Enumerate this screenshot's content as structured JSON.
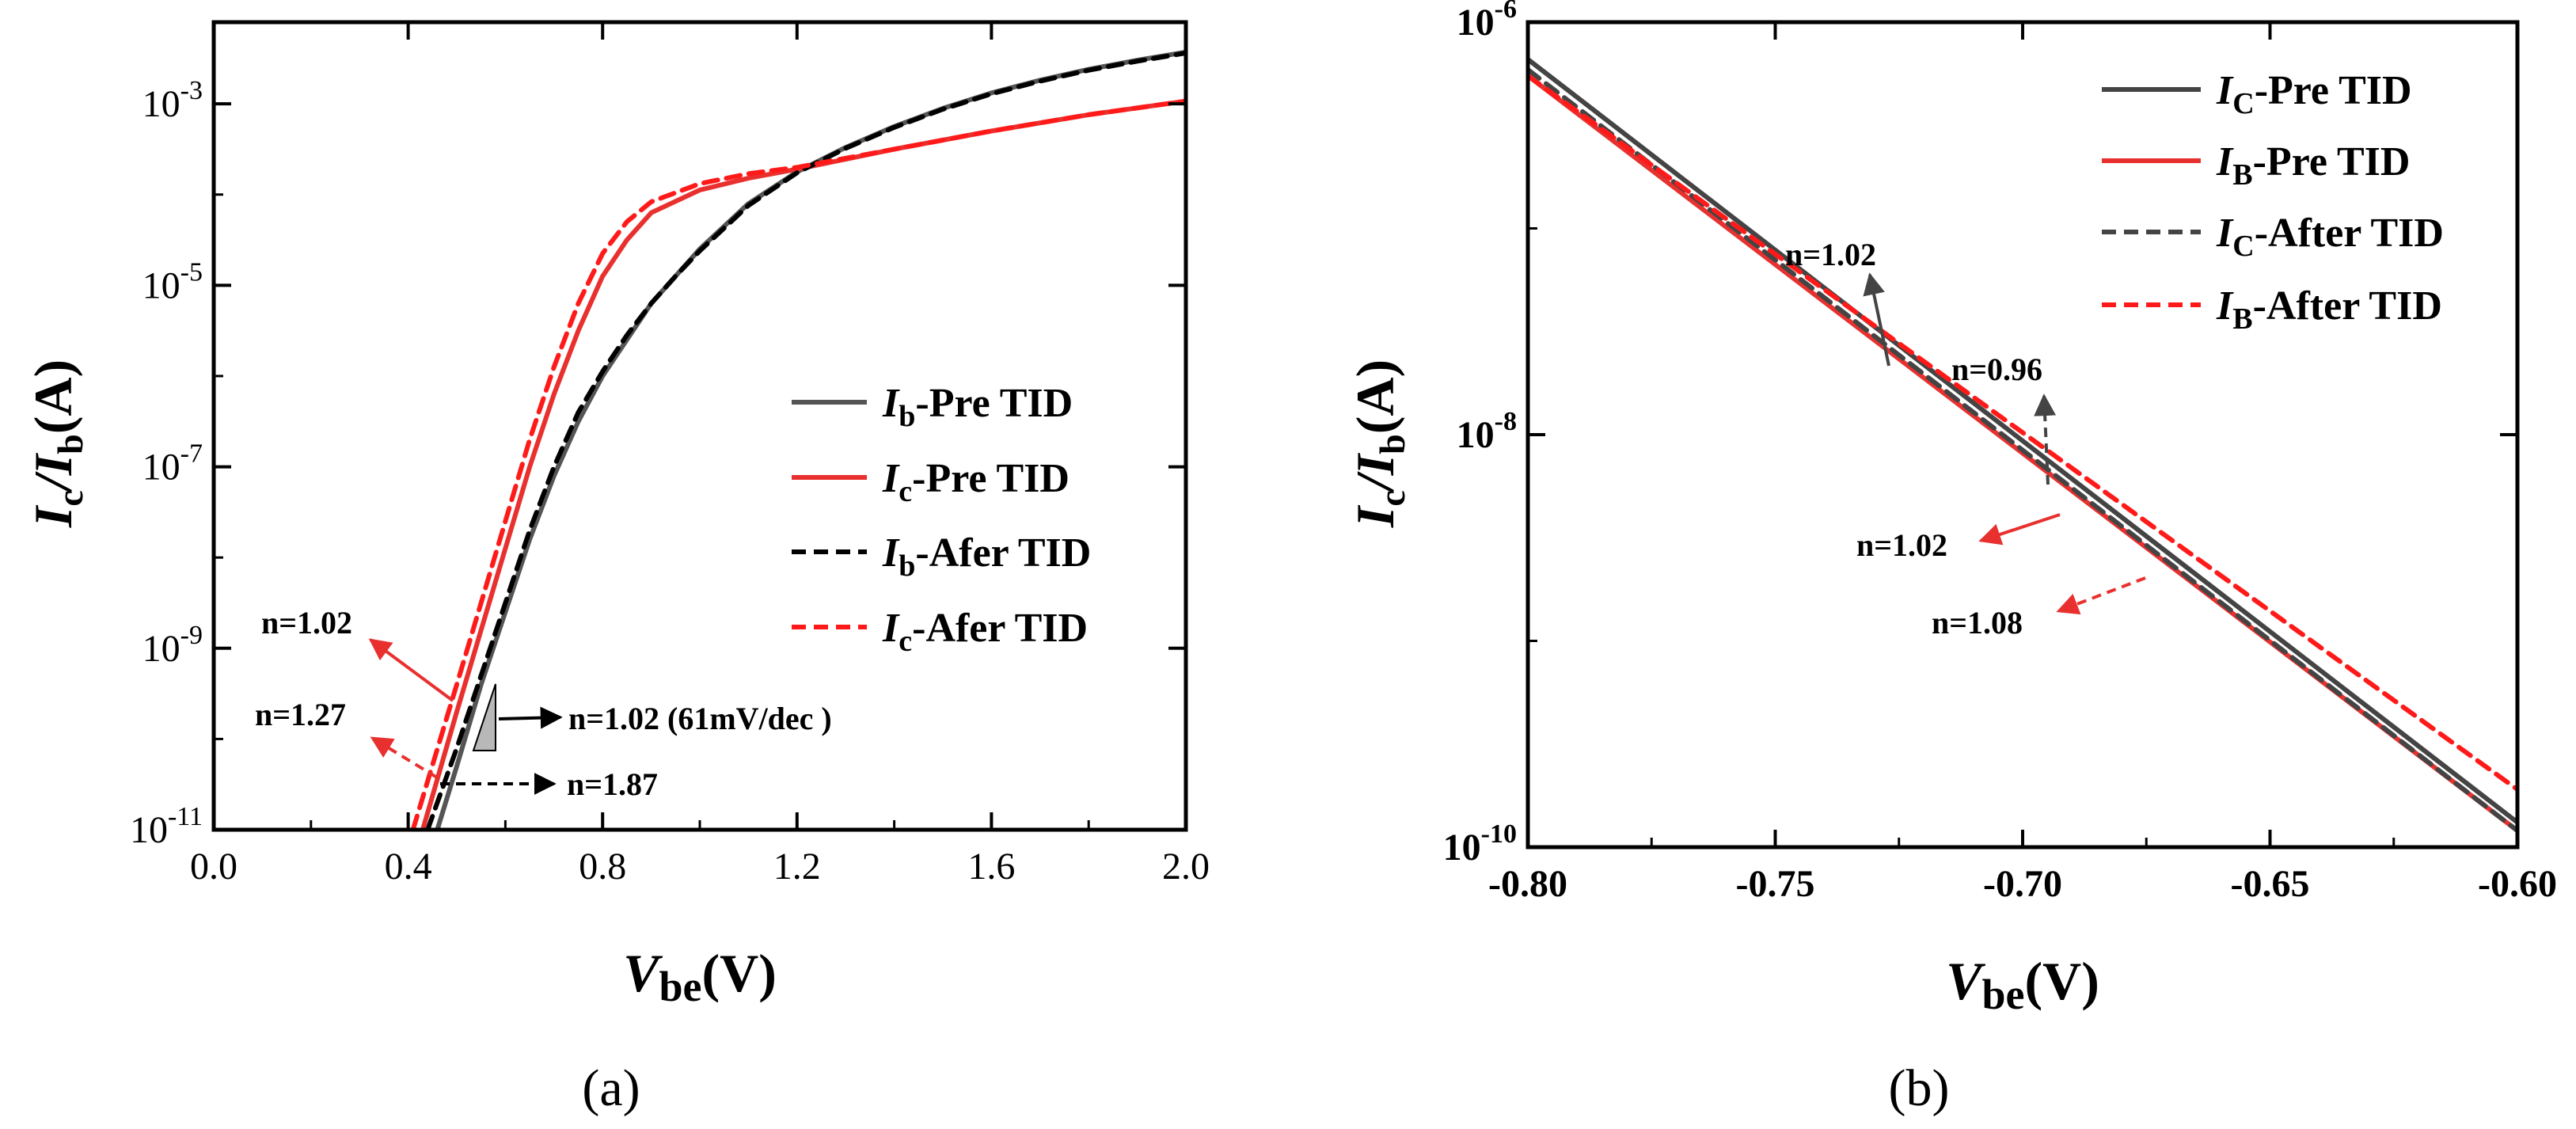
{
  "chart_data": [
    {
      "id": "a",
      "type": "line",
      "caption": "(a)",
      "xlabel": {
        "main": "V",
        "sub": "be",
        "unit": "(V)"
      },
      "ylabel": {
        "p1": "I",
        "s1": "c",
        "p2": "/I",
        "s2": "b",
        "unit": "(A)"
      },
      "xlim": [
        0,
        2
      ],
      "ylim_log10": [
        -11,
        -2.1
      ],
      "y_scale": "log",
      "xticks": [
        0,
        0.4,
        0.8,
        1.2,
        1.6,
        2.0
      ],
      "xtick_labels": [
        "0.0",
        "0.4",
        "0.8",
        "1.2",
        "1.6",
        "2.0"
      ],
      "yticks_log10": [
        -11,
        -9,
        -7,
        -5,
        -3
      ],
      "ytick_exponents": [
        "-11",
        "-9",
        "-7",
        "-5",
        "-3"
      ],
      "ytick_base": "10",
      "legend_position": "center-right",
      "series": [
        {
          "name": "Ib-Pre TID",
          "legend": {
            "italic": "I",
            "sub": "b",
            "rest": "-Pre TID"
          },
          "color": "#555555",
          "dashed": false,
          "x": [
            0.46,
            0.5,
            0.55,
            0.6,
            0.65,
            0.7,
            0.75,
            0.8,
            0.85,
            0.9,
            0.95,
            1.0,
            1.1,
            1.2,
            1.3,
            1.4,
            1.5,
            1.6,
            1.7,
            1.8,
            1.9,
            2.0
          ],
          "log10_y": [
            -11.0,
            -10.3,
            -9.4,
            -8.6,
            -7.8,
            -7.1,
            -6.5,
            -6.0,
            -5.6,
            -5.2,
            -4.9,
            -4.6,
            -4.1,
            -3.75,
            -3.48,
            -3.25,
            -3.05,
            -2.88,
            -2.74,
            -2.62,
            -2.52,
            -2.43
          ]
        },
        {
          "name": "Ic-Pre TID",
          "legend": {
            "italic": "I",
            "sub": "c",
            "rest": "-Pre TID"
          },
          "color": "#e8312f",
          "dashed": false,
          "x": [
            0.43,
            0.5,
            0.55,
            0.6,
            0.65,
            0.7,
            0.75,
            0.8,
            0.85,
            0.9,
            1.0,
            1.1,
            1.2,
            1.4,
            1.6,
            1.8,
            2.0
          ],
          "log10_y": [
            -11.0,
            -9.7,
            -8.8,
            -7.9,
            -7.0,
            -6.2,
            -5.5,
            -4.9,
            -4.5,
            -4.2,
            -3.95,
            -3.82,
            -3.72,
            -3.5,
            -3.3,
            -3.12,
            -2.97
          ]
        },
        {
          "name": "Ib-Afer TID",
          "legend": {
            "italic": "I",
            "sub": "b",
            "rest": "-Afer TID"
          },
          "color": "#000000",
          "dashed": true,
          "x": [
            0.44,
            0.5,
            0.55,
            0.6,
            0.65,
            0.7,
            0.75,
            0.8,
            0.85,
            0.9,
            0.95,
            1.0,
            1.1,
            1.2,
            1.3,
            1.4,
            1.5,
            1.6,
            1.7,
            1.8,
            1.9,
            2.0
          ],
          "log10_y": [
            -11.0,
            -10.1,
            -9.3,
            -8.5,
            -7.7,
            -7.0,
            -6.4,
            -5.95,
            -5.55,
            -5.2,
            -4.9,
            -4.62,
            -4.12,
            -3.76,
            -3.49,
            -3.26,
            -3.06,
            -2.89,
            -2.75,
            -2.63,
            -2.53,
            -2.44
          ]
        },
        {
          "name": "Ic-Afer TID",
          "legend": {
            "italic": "I",
            "sub": "c",
            "rest": "-Afer TID"
          },
          "color": "#ff1a1a",
          "dashed": true,
          "x": [
            0.41,
            0.5,
            0.55,
            0.6,
            0.65,
            0.7,
            0.75,
            0.8,
            0.85,
            0.9,
            1.0,
            1.1,
            1.2,
            1.4,
            1.6,
            1.8,
            2.0
          ],
          "log10_y": [
            -11.0,
            -9.4,
            -8.5,
            -7.6,
            -6.7,
            -5.9,
            -5.2,
            -4.65,
            -4.3,
            -4.08,
            -3.88,
            -3.77,
            -3.7,
            -3.5,
            -3.3,
            -3.12,
            -2.97
          ]
        }
      ],
      "annotations": [
        {
          "text": "n=1.02",
          "color": "#e8312f"
        },
        {
          "text": "n=1.27",
          "color": "#e8312f"
        },
        {
          "text": "n=1.02 (61mV/dec )",
          "color": "#000000"
        },
        {
          "text": "n=1.87",
          "color": "#000000"
        }
      ]
    },
    {
      "id": "b",
      "type": "line",
      "caption": "(b)",
      "xlabel": {
        "main": "V",
        "sub": "be",
        "unit": "(V)"
      },
      "ylabel": {
        "p1": "I",
        "s1": "c",
        "p2": "/I",
        "s2": "b",
        "unit": "(A)"
      },
      "xlim": [
        -0.8,
        -0.6
      ],
      "ylim_log10": [
        -10,
        -6
      ],
      "y_scale": "log",
      "xticks": [
        -0.8,
        -0.75,
        -0.7,
        -0.65,
        -0.6
      ],
      "xtick_labels": [
        "-0.80",
        "-0.75",
        "-0.70",
        "-0.65",
        "-0.60"
      ],
      "yticks_log10": [
        -10,
        -8,
        -6
      ],
      "ytick_exponents": [
        "-10",
        "-8",
        "-6"
      ],
      "ytick_base": "10",
      "legend_position": "top-right",
      "series": [
        {
          "name": "IC-Pre TID",
          "legend": {
            "italic": "I",
            "sub": "C",
            "rest": "-Pre TID"
          },
          "color": "#444444",
          "dashed": false,
          "x": [
            -0.8,
            -0.6
          ],
          "log10_y": [
            -6.18,
            -9.88
          ]
        },
        {
          "name": "IB-Pre TID",
          "legend": {
            "italic": "I",
            "sub": "B",
            "rest": "-Pre TID"
          },
          "color": "#e8312f",
          "dashed": false,
          "x": [
            -0.8,
            -0.6
          ],
          "log10_y": [
            -6.26,
            -9.92
          ]
        },
        {
          "name": "IC-After TID",
          "legend": {
            "italic": "I",
            "sub": "C",
            "rest": "-After TID"
          },
          "color": "#444444",
          "dashed": true,
          "x": [
            -0.8,
            -0.6
          ],
          "log10_y": [
            -6.23,
            -9.92
          ]
        },
        {
          "name": "IB-After TID",
          "legend": {
            "italic": "I",
            "sub": "B",
            "rest": "-After TID"
          },
          "color": "#ff1a1a",
          "dashed": true,
          "x": [
            -0.8,
            -0.6
          ],
          "log10_y": [
            -6.26,
            -9.72
          ]
        }
      ],
      "annotations": [
        {
          "text": "n=1.02",
          "color": "#444444"
        },
        {
          "text": "n=0.96",
          "color": "#444444"
        },
        {
          "text": "n=1.02",
          "color": "#e8312f"
        },
        {
          "text": "n=1.08",
          "color": "#e8312f"
        }
      ]
    }
  ]
}
